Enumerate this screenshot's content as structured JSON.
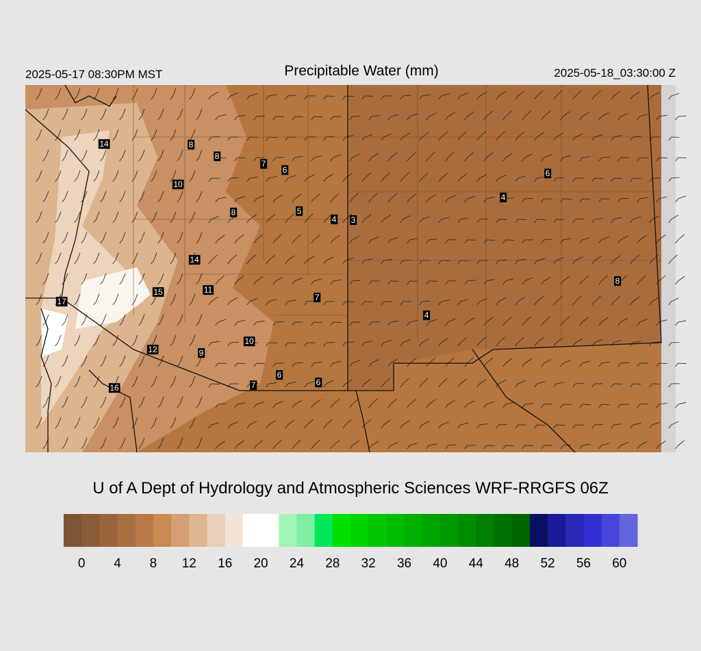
{
  "header": {
    "left": "2025-05-17 08:30PM MST",
    "title": "Precipitable Water (mm)",
    "right": "2025-05-18_03:30:00 Z"
  },
  "map": {
    "labels": [
      14,
      8,
      8,
      7,
      6,
      10,
      8,
      5,
      4,
      3,
      4,
      6,
      14,
      15,
      11,
      17,
      7,
      4,
      8,
      10,
      12,
      9,
      6,
      7,
      6,
      16
    ]
  },
  "footer": {
    "credit": "U of A Dept of Hydrology and Atmospheric Sciences WRF-RRGFS 06Z"
  },
  "colorbar": {
    "lim": [
      -2,
      62
    ],
    "ticks": [
      0,
      4,
      8,
      12,
      16,
      20,
      24,
      28,
      32,
      36,
      40,
      44,
      48,
      52,
      56,
      60
    ],
    "colors": [
      "#7e5534",
      "#8b5c38",
      "#9a653c",
      "#a86f40",
      "#b77a46",
      "#c88b52",
      "#d4a073",
      "#ddb58f",
      "#e9cfb8",
      "#f3e4d9",
      "#ffffff",
      "#ffffff",
      "#a0f5b4",
      "#80eea0",
      "#00e85a",
      "#00e000",
      "#00d400",
      "#00c800",
      "#00bc00",
      "#00b000",
      "#00a400",
      "#009800",
      "#008c00",
      "#007e00",
      "#007000",
      "#006400",
      "#0a1060",
      "#1a1a98",
      "#2828b4",
      "#3030d0",
      "#4646dc",
      "#6464dc"
    ]
  }
}
